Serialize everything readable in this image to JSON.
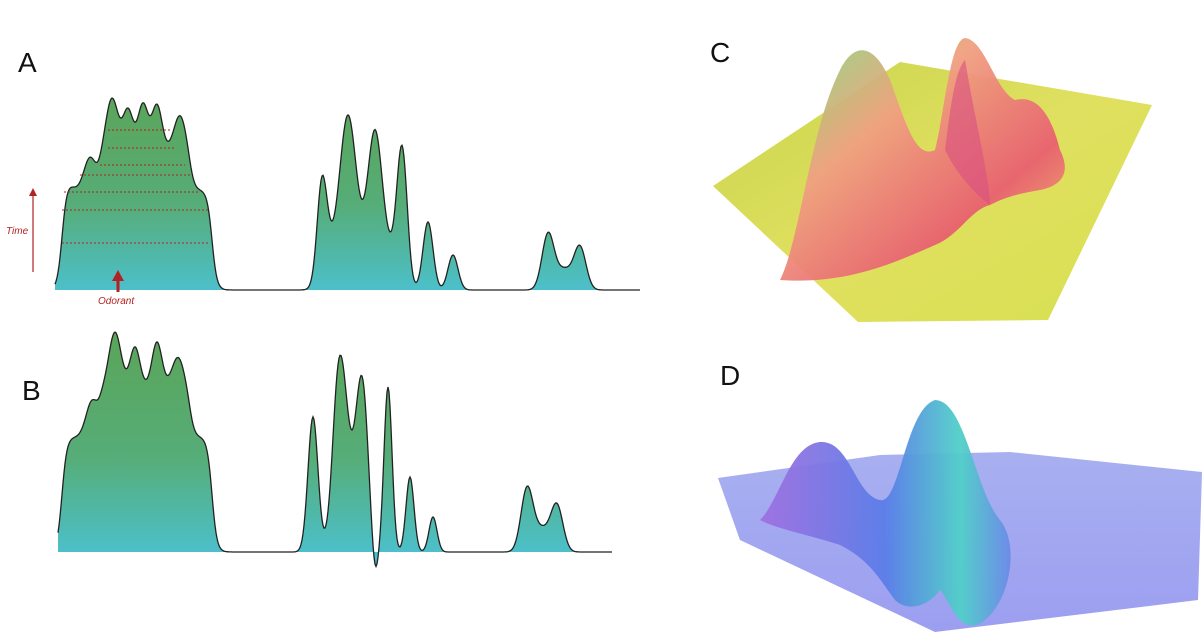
{
  "panels": [
    {
      "label": "A"
    },
    {
      "label": "B"
    },
    {
      "label": "C"
    },
    {
      "label": "D"
    }
  ],
  "annotations": {
    "time": "Time",
    "odorant": "Odorant"
  }
}
